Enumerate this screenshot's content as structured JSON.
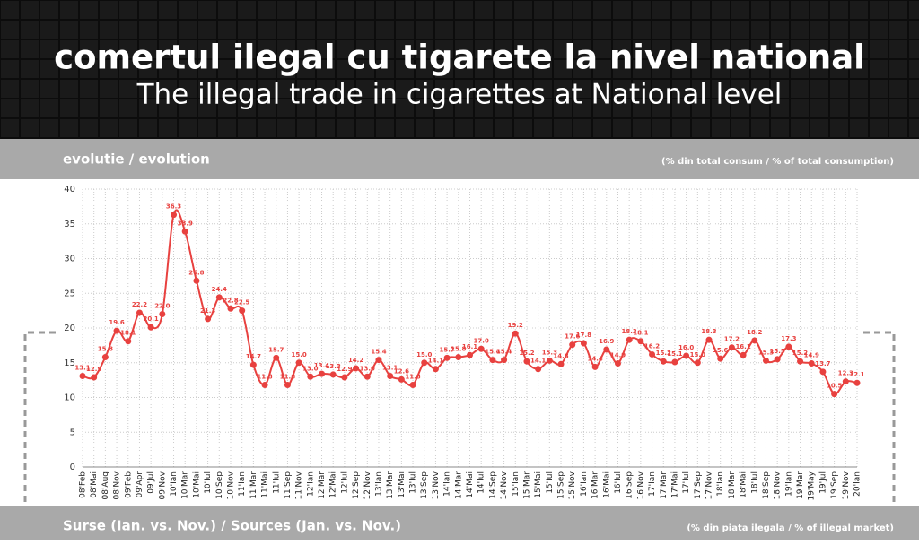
{
  "header": {
    "title": "comertul ilegal cu tigarete la nivel national",
    "subtitle": "The illegal trade in cigarettes at National level"
  },
  "section": {
    "left": "evolutie / evolution",
    "right": "(% din total consum / % of total consumption)"
  },
  "footer": {
    "left": "Surse (Ian. vs. Nov.) / Sources (Jan. vs. Nov.)",
    "right": "(% din piata ilegala / % of illegal market)"
  },
  "chart_data": {
    "type": "line",
    "color": "#e8413f",
    "grid": true,
    "ylim": [
      0,
      40
    ],
    "yticks": [
      0,
      5,
      10,
      15,
      20,
      25,
      30,
      35,
      40
    ],
    "categories": [
      "08'Feb",
      "08'Mai",
      "08'Aug",
      "08'Nov",
      "09'Feb",
      "09'Apr",
      "09'Jul",
      "09'Nov",
      "10'Ian",
      "10'Mar",
      "10'Mai",
      "10'Iul",
      "10'Sep",
      "10'Nov",
      "11'Ian",
      "11'Mar",
      "11'Mai",
      "11'Iul",
      "11'Sep",
      "11'Nov",
      "12'Ian",
      "12'Mar",
      "12'Mai",
      "12'Iul",
      "12'Sep",
      "12'Nov",
      "13'Ian",
      "13'Mar",
      "13'Mai",
      "13'Iul",
      "13'Sep",
      "13'Nov",
      "14'Ian",
      "14'Mar",
      "14'Mai",
      "14'Iul",
      "14'Sep",
      "14'Nov",
      "15'Ian",
      "15'Mar",
      "15'Mai",
      "15'Iul",
      "15'Sep",
      "15'Nov",
      "16'Ian",
      "16'Mar",
      "16'Mai",
      "16'Iul",
      "16'Sep",
      "16'Nov",
      "17'Ian",
      "17'Mar",
      "17'Mai",
      "17'Iul",
      "17'Sep",
      "17'Nov",
      "18'Ian",
      "18'Mar",
      "18'Mai",
      "18'Iul",
      "18'Sep",
      "18'Nov",
      "19'Ian",
      "19'Mar",
      "19'May",
      "19'Jul",
      "19'Sep",
      "19'Nov",
      "20'Ian"
    ],
    "values": [
      13.1,
      12.9,
      15.8,
      19.6,
      18.1,
      22.2,
      20.1,
      22.0,
      36.3,
      33.9,
      26.8,
      21.3,
      24.4,
      22.8,
      22.5,
      14.7,
      11.8,
      15.7,
      11.8,
      15.0,
      13.0,
      13.4,
      13.3,
      12.9,
      14.2,
      13.0,
      15.4,
      13.1,
      12.6,
      11.8,
      15.0,
      14.1,
      15.7,
      15.8,
      16.1,
      17.0,
      15.4,
      15.4,
      19.2,
      15.2,
      14.1,
      15.3,
      14.8,
      17.6,
      17.8,
      14.4,
      16.9,
      14.9,
      18.3,
      18.1,
      16.2,
      15.2,
      15.1,
      16.0,
      15.0,
      18.3,
      15.6,
      17.2,
      16.1,
      18.2,
      15.3,
      15.5,
      17.3,
      15.2,
      14.9,
      13.7,
      10.5,
      12.3,
      12.1
    ],
    "value_labels": [
      "13.1",
      "12.9",
      "15.8",
      "19.6",
      "18.1",
      "22.2",
      "20.1",
      "22.0",
      "36.3",
      "33.9",
      "26.8",
      "21.3",
      "24.4",
      "22.8",
      "22.5",
      "14.7",
      "11.8",
      "15.7",
      "11.8",
      "15.0",
      "13.0",
      "13.4",
      "13.3",
      "12.9",
      "14.2",
      "13.0",
      "15.4",
      "13.1",
      "12.6",
      "11.8",
      "15.0",
      "14.1",
      "15.7",
      "15.8",
      "16.1",
      "17.0",
      "15.4",
      "15.4",
      "19.2",
      "15.2",
      "14.1",
      "15.3",
      "14.8",
      "17.6",
      "17.8",
      "14.4",
      "16.9",
      "14.9",
      "18.3",
      "18.1",
      "16.2",
      "15.2",
      "15.1",
      "16.0",
      "15.0",
      "18.3",
      "15.6",
      "17.2",
      "16.1",
      "18.2",
      "15.3",
      "15.5",
      "17.3",
      "15.2",
      "14.9",
      "13.7",
      "10.5",
      "12.3",
      "12.1"
    ]
  }
}
